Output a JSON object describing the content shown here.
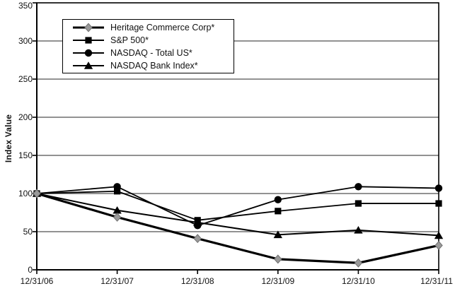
{
  "chart_data": {
    "type": "line",
    "title": "",
    "ylabel": "Index Value",
    "xlabel": "",
    "ylim": [
      0,
      350
    ],
    "yticks": [
      0,
      50,
      100,
      150,
      200,
      250,
      300,
      350
    ],
    "grid": "horizontal",
    "legend_position": "top-left-inside",
    "categories": [
      "12/31/06",
      "12/31/07",
      "12/31/08",
      "12/31/09",
      "12/31/10",
      "12/31/11"
    ],
    "series": [
      {
        "name": "Heritage Commerce Corp*",
        "marker": "diamond",
        "marker_color": "#9a9a9a",
        "marker_edge_color": "#6f6f6f",
        "line_color": "#000000",
        "line_width": 3.2,
        "values": [
          100,
          69,
          41,
          14,
          9,
          32
        ]
      },
      {
        "name": "S&P 500*",
        "marker": "square",
        "marker_color": "#000000",
        "marker_edge_color": "#000000",
        "line_color": "#000000",
        "line_width": 1.8,
        "values": [
          100,
          103,
          65,
          77,
          87,
          87
        ]
      },
      {
        "name": "NASDAQ - Total US*",
        "marker": "circle",
        "marker_color": "#000000",
        "marker_edge_color": "#000000",
        "line_color": "#000000",
        "line_width": 1.8,
        "values": [
          100,
          109,
          58,
          92,
          109,
          107
        ]
      },
      {
        "name": "NASDAQ Bank Index*",
        "marker": "triangle",
        "marker_color": "#000000",
        "marker_edge_color": "#000000",
        "line_color": "#000000",
        "line_width": 2.0,
        "values": [
          100,
          78,
          62,
          46,
          52,
          45
        ]
      }
    ],
    "colors": {
      "background": "#ffffff",
      "axis": "#000000",
      "gridline": "#6e6e6e",
      "text": "#111111"
    }
  }
}
